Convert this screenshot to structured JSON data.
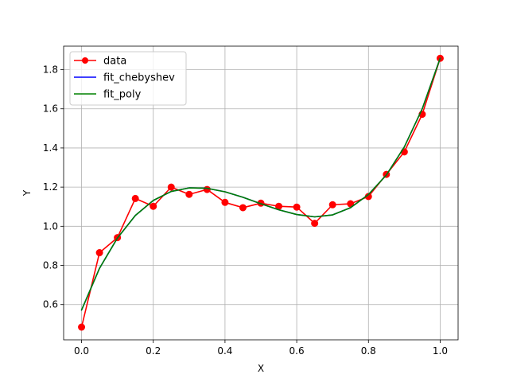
{
  "chart_data": {
    "type": "line",
    "title": "",
    "xlabel": "X",
    "ylabel": "Y",
    "xlim": [
      -0.05,
      1.05
    ],
    "ylim": [
      0.42,
      1.92
    ],
    "xticks": [
      0.0,
      0.2,
      0.4,
      0.6,
      0.8,
      1.0
    ],
    "xtick_labels": [
      "0.0",
      "0.2",
      "0.4",
      "0.6",
      "0.8",
      "1.0"
    ],
    "yticks": [
      0.6,
      0.8,
      1.0,
      1.2,
      1.4,
      1.6,
      1.8
    ],
    "ytick_labels": [
      "0.6",
      "0.8",
      "1.0",
      "1.2",
      "1.4",
      "1.6",
      "1.8"
    ],
    "grid": true,
    "legend_position": "top-left",
    "x": [
      0.0,
      0.05,
      0.1,
      0.15,
      0.2,
      0.25,
      0.3,
      0.35,
      0.4,
      0.45,
      0.5,
      0.55,
      0.6,
      0.65,
      0.7,
      0.75,
      0.8,
      0.85,
      0.9,
      0.95,
      1.0
    ],
    "series": [
      {
        "name": "data",
        "color": "#ff0000",
        "marker": "circle",
        "values": [
          0.485,
          0.865,
          0.942,
          1.142,
          1.102,
          1.2,
          1.163,
          1.188,
          1.122,
          1.095,
          1.118,
          1.102,
          1.098,
          1.015,
          1.11,
          1.115,
          1.152,
          1.265,
          1.38,
          1.572,
          1.858
        ]
      },
      {
        "name": "fit_chebyshev",
        "color": "#0000ff",
        "marker": "none",
        "values": [
          0.572,
          0.785,
          0.94,
          1.055,
          1.132,
          1.178,
          1.196,
          1.194,
          1.176,
          1.148,
          1.115,
          1.084,
          1.06,
          1.048,
          1.058,
          1.095,
          1.162,
          1.262,
          1.405,
          1.6,
          1.858
        ]
      },
      {
        "name": "fit_poly",
        "color": "#008000",
        "marker": "none",
        "values": [
          0.572,
          0.785,
          0.94,
          1.055,
          1.132,
          1.178,
          1.196,
          1.194,
          1.176,
          1.148,
          1.115,
          1.084,
          1.06,
          1.048,
          1.058,
          1.095,
          1.162,
          1.262,
          1.405,
          1.6,
          1.858
        ]
      }
    ]
  }
}
